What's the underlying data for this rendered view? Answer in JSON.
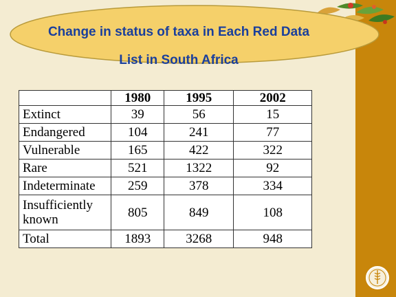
{
  "title": {
    "line1": "Change in status of taxa in Each Red Data",
    "line2": "List in South Africa"
  },
  "table": {
    "headers": [
      "",
      "1980",
      "1995",
      "2002"
    ],
    "rows": [
      {
        "label": "Extinct",
        "values": [
          "39",
          "56",
          "15"
        ]
      },
      {
        "label": "Endangered",
        "values": [
          "104",
          "241",
          "77"
        ]
      },
      {
        "label": "Vulnerable",
        "values": [
          "165",
          "422",
          "322"
        ]
      },
      {
        "label": "Rare",
        "values": [
          "521",
          "1322",
          "92"
        ]
      },
      {
        "label": "Indeterminate",
        "values": [
          "259",
          "378",
          "334"
        ]
      },
      {
        "label": "Insufficiently known",
        "values": [
          "805",
          "849",
          "108"
        ]
      },
      {
        "label": "Total",
        "values": [
          "1893",
          "3268",
          "948"
        ]
      }
    ]
  },
  "colors": {
    "background": "#f4ecd2",
    "side_band": "#c8860b",
    "title_ellipse": "#f5d06a",
    "title_text": "#1a3f9c"
  },
  "icons": {
    "logo": "fao-logo-icon",
    "decoration": "leaves-decoration-icon"
  }
}
